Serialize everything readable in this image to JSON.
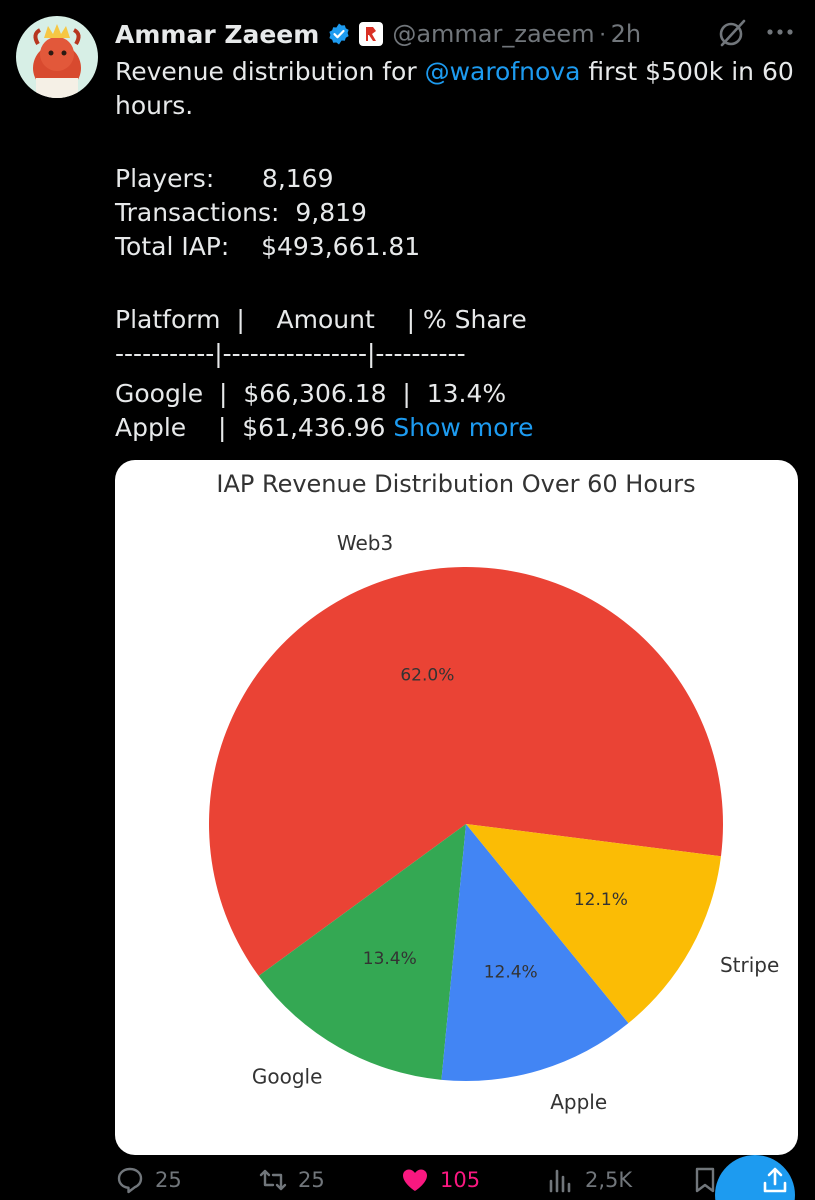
{
  "tweet": {
    "author_name": "Ammar Zaeem",
    "handle": "@ammar_zaeem",
    "separator": "·",
    "time": "2h",
    "text_line1_prefix": "Revenue distribution for ",
    "mention": "@warofnova",
    "text_line1_suffix": " first $500k in 60",
    "text_line2": "hours.",
    "stats": [
      "Players:      8,169",
      "Transactions:  9,819",
      "Total IAP:    $493,661.81"
    ],
    "table_header": "Platform  |    Amount    | % Share",
    "table_divider": "-----------|----------------|----------",
    "table_rows": [
      "Google  |  $66,306.18  |  13.4%",
      "Apple    |  $61,436.96 "
    ],
    "show_more": "Show more"
  },
  "chart_data": {
    "type": "pie",
    "title": "IAP Revenue Distribution Over 60 Hours",
    "slices": [
      {
        "label": "Web3",
        "value": 62.0,
        "pct_label": "62.0%",
        "color": "#ea4335"
      },
      {
        "label": "Google",
        "value": 13.4,
        "pct_label": "13.4%",
        "color": "#34a853"
      },
      {
        "label": "Apple",
        "value": 12.4,
        "pct_label": "12.4%",
        "color": "#4285f4"
      },
      {
        "label": "Stripe",
        "value": 12.1,
        "pct_label": "12.1%",
        "color": "#fbbc05"
      }
    ],
    "start_angle_deg": -7.2,
    "direction": "counterclockwise"
  },
  "actions": {
    "replies": "25",
    "reposts": "25",
    "likes": "105",
    "views": "2,5K"
  },
  "colors": {
    "accent": "#1d9bf0",
    "like": "#f91880",
    "muted": "#71767b"
  }
}
